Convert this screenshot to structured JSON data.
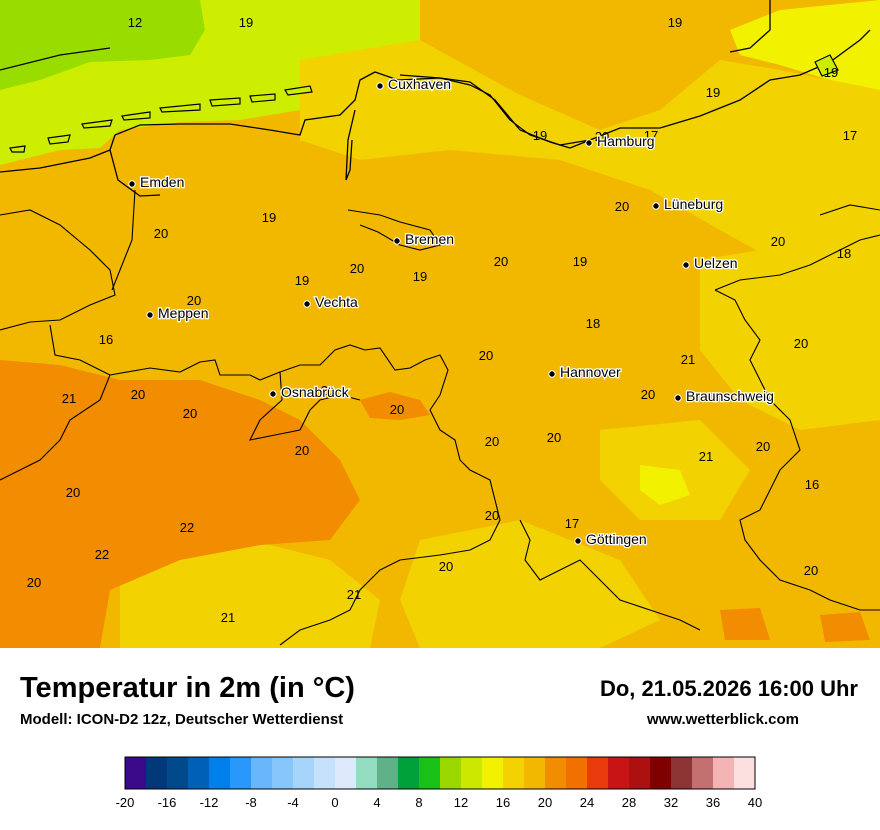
{
  "title": "Temperatur in 2m (in °C)",
  "subtitle": "Modell: ICON-D2 12z, Deutscher Wetterdienst",
  "datetime": "Do, 21.05.2026 16:00 Uhr",
  "website": "www.wetterblick.com",
  "cities": [
    {
      "id": "cuxhaven",
      "name": "Cuxhaven"
    },
    {
      "id": "hamburg",
      "name": "Hamburg"
    },
    {
      "id": "emden",
      "name": "Emden"
    },
    {
      "id": "lueneburg",
      "name": "Lüneburg"
    },
    {
      "id": "bremen",
      "name": "Bremen"
    },
    {
      "id": "uelzen",
      "name": "Uelzen"
    },
    {
      "id": "vechta",
      "name": "Vechta"
    },
    {
      "id": "meppen",
      "name": "Meppen"
    },
    {
      "id": "hannover",
      "name": "Hannover"
    },
    {
      "id": "osnabrueck",
      "name": "Osnabrück"
    },
    {
      "id": "braunschweig",
      "name": "Braunschweig"
    },
    {
      "id": "goettingen",
      "name": "Göttingen"
    }
  ],
  "temperature_labels": [
    "12",
    "19",
    "19",
    "19",
    "19",
    "17",
    "17",
    "19",
    "20",
    "20",
    "19",
    "20",
    "20",
    "18",
    "20",
    "19",
    "20",
    "19",
    "19",
    "20",
    "18",
    "16",
    "20",
    "20",
    "21",
    "20",
    "21",
    "20",
    "20",
    "20",
    "21",
    "20",
    "20",
    "20",
    "20",
    "21",
    "20",
    "22",
    "22",
    "20",
    "16",
    "20",
    "17",
    "20",
    "20",
    "21",
    "21"
  ],
  "legend": {
    "colors": [
      "#3a0a8a",
      "#00387a",
      "#004a8c",
      "#0060b8",
      "#0080ea",
      "#2898fa",
      "#6ab6fa",
      "#86c6fa",
      "#a6d4fa",
      "#c4e2fc",
      "#dce9fa",
      "#94dcc0",
      "#60b088",
      "#00a03a",
      "#18c018",
      "#9ad800",
      "#cce800",
      "#f2f200",
      "#f2d200",
      "#f2b800",
      "#f28c00",
      "#f27000",
      "#e83a0a",
      "#c81414",
      "#ac1010",
      "#800000",
      "#8c3434",
      "#c47070",
      "#f4b4b4",
      "#fce0e0"
    ],
    "tick_labels": [
      "-20",
      "-16",
      "-12",
      "-8",
      "-4",
      "0",
      "4",
      "8",
      "12",
      "16",
      "20",
      "24",
      "28",
      "32",
      "36",
      "40"
    ]
  },
  "colors": {
    "sea": "#cdee00",
    "cool_sea": "#99dd00",
    "land": "#f2b800",
    "land_light": "#f2d200",
    "land_warm": "#f28c00",
    "cool_land": "#f2f200"
  }
}
